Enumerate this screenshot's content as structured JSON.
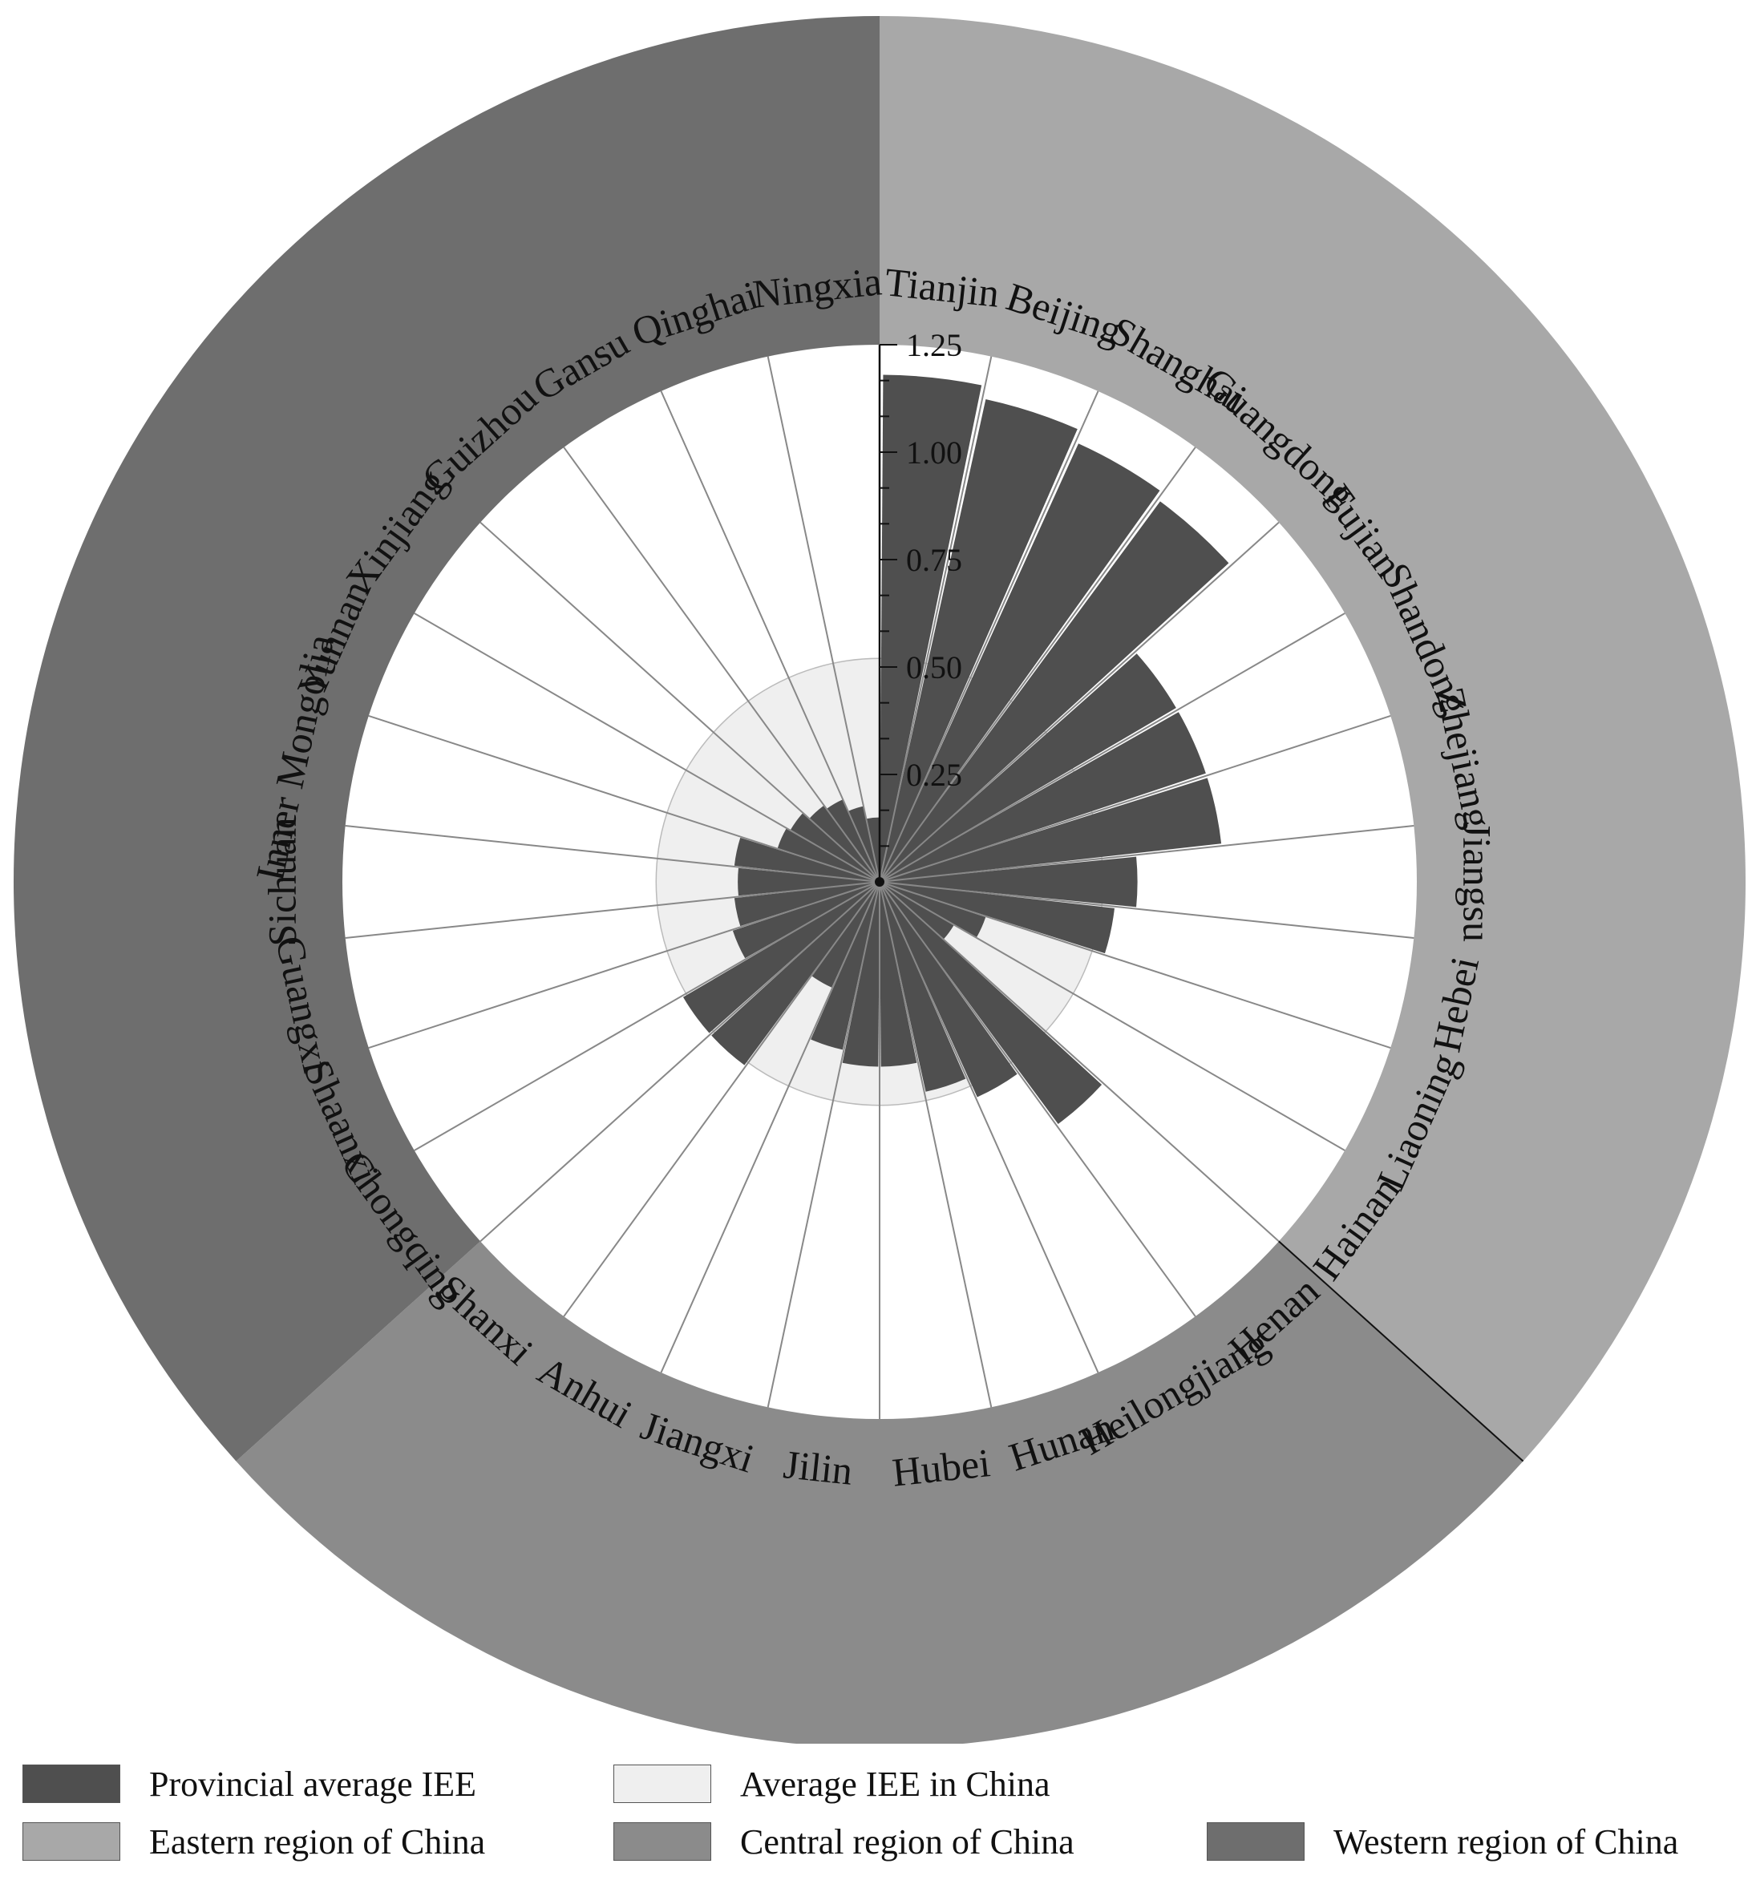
{
  "chart_data": {
    "type": "polar_bar",
    "title": "",
    "radial_axis": {
      "min": 0,
      "max": 1.25,
      "ticks": [
        "0.25",
        "0.50",
        "0.75",
        "1.00",
        "1.25"
      ]
    },
    "average_iee_china": 0.52,
    "categories": [
      "Tianjin",
      "Beijing",
      "Shanghai",
      "Guangdong",
      "Fujian",
      "Shandong",
      "Zhejiang",
      "Jiangsu",
      "Hebei",
      "Liaoning",
      "Hainan",
      "Henan",
      "Heilongjiang",
      "Hunan",
      "Hubei",
      "Jilin",
      "Jiangxi",
      "Anhui",
      "Shanxi",
      "Chongqing",
      "Shaanxi",
      "Guangxi",
      "Sichuan",
      "Inner Mongolia",
      "Yunnan",
      "Xinjiang",
      "Guizhou",
      "Gansu",
      "Qinghai",
      "Ningxia"
    ],
    "region_of_category": [
      "Eastern",
      "Eastern",
      "Eastern",
      "Eastern",
      "Eastern",
      "Eastern",
      "Eastern",
      "Eastern",
      "Eastern",
      "Eastern",
      "Eastern",
      "Central",
      "Central",
      "Central",
      "Central",
      "Central",
      "Central",
      "Central",
      "Central",
      "Western",
      "Western",
      "Western",
      "Western",
      "Western",
      "Western",
      "Western",
      "Western",
      "Western",
      "Western",
      "Western"
    ],
    "series": [
      {
        "name": "Provincial average IEE",
        "values": [
          1.18,
          1.15,
          1.12,
          1.1,
          0.8,
          0.8,
          0.8,
          0.6,
          0.55,
          0.26,
          0.2,
          0.7,
          0.55,
          0.5,
          0.43,
          0.43,
          0.4,
          0.27,
          0.53,
          0.53,
          0.36,
          0.34,
          0.33,
          0.34,
          0.25,
          0.24,
          0.22,
          0.21,
          0.18,
          0.15
        ]
      }
    ],
    "regions": [
      {
        "name": "Eastern region of China",
        "color": "#a8a8a8"
      },
      {
        "name": "Central region of China",
        "color": "#8b8b8b"
      },
      {
        "name": "Western region of China",
        "color": "#6e6e6e"
      }
    ],
    "colors": {
      "provincial": "#4f4f4f",
      "average": "#efefef",
      "sector": "#ffffff",
      "spoke": "#888888"
    }
  },
  "legend": [
    {
      "label": "Provincial average IEE",
      "color": "#4f4f4f"
    },
    {
      "label": "Average IEE in China",
      "color": "#efefef"
    },
    {
      "label": "Eastern region of China",
      "color": "#a8a8a8"
    },
    {
      "label": "Central region of China",
      "color": "#8b8b8b"
    },
    {
      "label": "Western region of China",
      "color": "#6e6e6e"
    }
  ]
}
